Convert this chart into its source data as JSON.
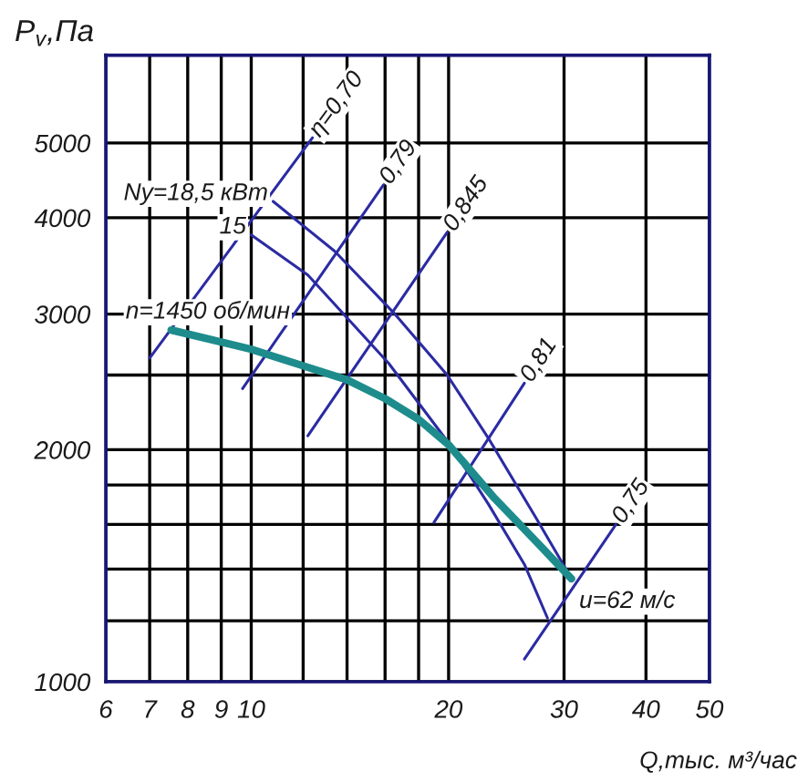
{
  "chart_data": {
    "type": "line",
    "xlabel": "Q,тыс. м³/час",
    "ylabel": "P$_{v}$,Па",
    "log": "xy",
    "grid": true,
    "xlim": [
      6,
      50
    ],
    "xticks": [
      6,
      7,
      8,
      9,
      10,
      {
        "value": 12,
        "label": null
      },
      {
        "value": 14,
        "label": null
      },
      {
        "value": 16,
        "label": null
      },
      {
        "value": 18,
        "label": null
      },
      20,
      30,
      40,
      50
    ],
    "ylim": [
      1000,
      6500
    ],
    "yticks": [
      1000,
      {
        "value": 1200,
        "label": null
      },
      {
        "value": 1400,
        "label": null
      },
      {
        "value": 1600,
        "label": null
      },
      {
        "value": 1800,
        "label": null
      },
      2000,
      {
        "value": 2500,
        "label": null
      },
      3000,
      4000,
      5000
    ],
    "series": [
      {
        "name": "η=0,70",
        "color": "#2b2ba3",
        "x": [
          7.0,
          12.4
        ],
        "values": [
          2630,
          5080
        ]
      },
      {
        "name": "0,79",
        "color": "#2b2ba3",
        "x": [
          9.7,
          15.9
        ],
        "values": [
          2400,
          4410
        ]
      },
      {
        "name": "0,845",
        "color": "#2b2ba3",
        "x": [
          12.2,
          19.9
        ],
        "values": [
          2085,
          3830
        ]
      },
      {
        "name": "0,81",
        "color": "#2b2ba3",
        "x": [
          19.0,
          26.1
        ],
        "values": [
          1610,
          2440
        ]
      },
      {
        "name": "0,75",
        "color": "#2b2ba3",
        "x": [
          26.1,
          36.0
        ],
        "values": [
          1070,
          1600
        ]
      },
      {
        "name": "Ny=18,5 кВт",
        "color": "#2b2ba3",
        "x": [
          10.8,
          13.4,
          16.5,
          19.9,
          23.0,
          27.2,
          30.8
        ],
        "values": [
          4200,
          3620,
          3010,
          2500,
          2070,
          1630,
          1360
        ]
      },
      {
        "name": "15",
        "color": "#2b2ba3",
        "x": [
          10.0,
          12.2,
          16.2,
          20.1,
          23.0,
          26.1,
          28.3
        ],
        "values": [
          3800,
          3370,
          2590,
          2030,
          1700,
          1420,
          1210
        ]
      },
      {
        "color": "#1e8c8c",
        "x": [
          7.55,
          10,
          12,
          14,
          16,
          18,
          20,
          23.5,
          27.2,
          30.8
        ],
        "values": [
          2860,
          2700,
          2570,
          2465,
          2330,
          2190,
          2030,
          1730,
          1520,
          1360
        ]
      }
    ],
    "annotations": [
      {
        "text": "n=1450 об/мин",
        "x": 7.55,
        "y": 2860
      },
      {
        "text": "u=62 м/с",
        "x": 30.8,
        "y": 1360
      }
    ]
  }
}
